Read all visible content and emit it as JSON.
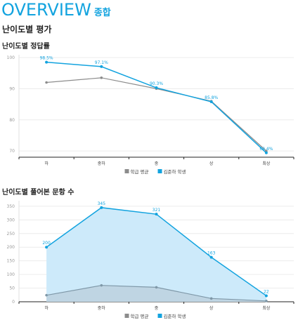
{
  "header": {
    "title": "OVERVIEW",
    "subtitle": "종합"
  },
  "section_title": "난이도별 평가",
  "colors": {
    "accent": "#12a3df",
    "avg": "#8c8c8c",
    "area_student": "#cdeafa",
    "area_avg": "#bcd1de"
  },
  "chart_data": [
    {
      "type": "line",
      "title": "난이도별 정답률",
      "categories": [
        "하",
        "중하",
        "중",
        "상",
        "최상"
      ],
      "yticks": [
        70,
        80,
        90,
        100
      ],
      "ylim": [
        68,
        100
      ],
      "grid": true,
      "legend_position": "bottom-center",
      "series": [
        {
          "name": "학급 평균",
          "values": [
            92,
            93.5,
            90,
            86,
            70
          ],
          "labels": [
            "",
            "",
            "",
            "",
            ""
          ]
        },
        {
          "name": "김준하 학생",
          "values": [
            98.5,
            97.1,
            90.3,
            85.8,
            69.4
          ],
          "labels": [
            "98.5%",
            "97.1%",
            "90.3%",
            "85.8%",
            "69.4%"
          ]
        }
      ]
    },
    {
      "type": "area",
      "title": "난이도별 풀어본 문항 수",
      "categories": [
        "하",
        "중하",
        "중",
        "상",
        "최상"
      ],
      "yticks": [
        0,
        50,
        100,
        150,
        200,
        250,
        300,
        350
      ],
      "ylim": [
        0,
        360
      ],
      "grid": true,
      "legend_position": "bottom-center",
      "series": [
        {
          "name": "학급 평균",
          "values": [
            24,
            60,
            53,
            12,
            3
          ],
          "labels": [
            "",
            "",
            "",
            "",
            ""
          ]
        },
        {
          "name": "김준하 학생",
          "values": [
            200,
            345,
            321,
            163,
            22
          ],
          "labels": [
            "200",
            "345",
            "321",
            "163",
            "22"
          ]
        }
      ]
    }
  ]
}
